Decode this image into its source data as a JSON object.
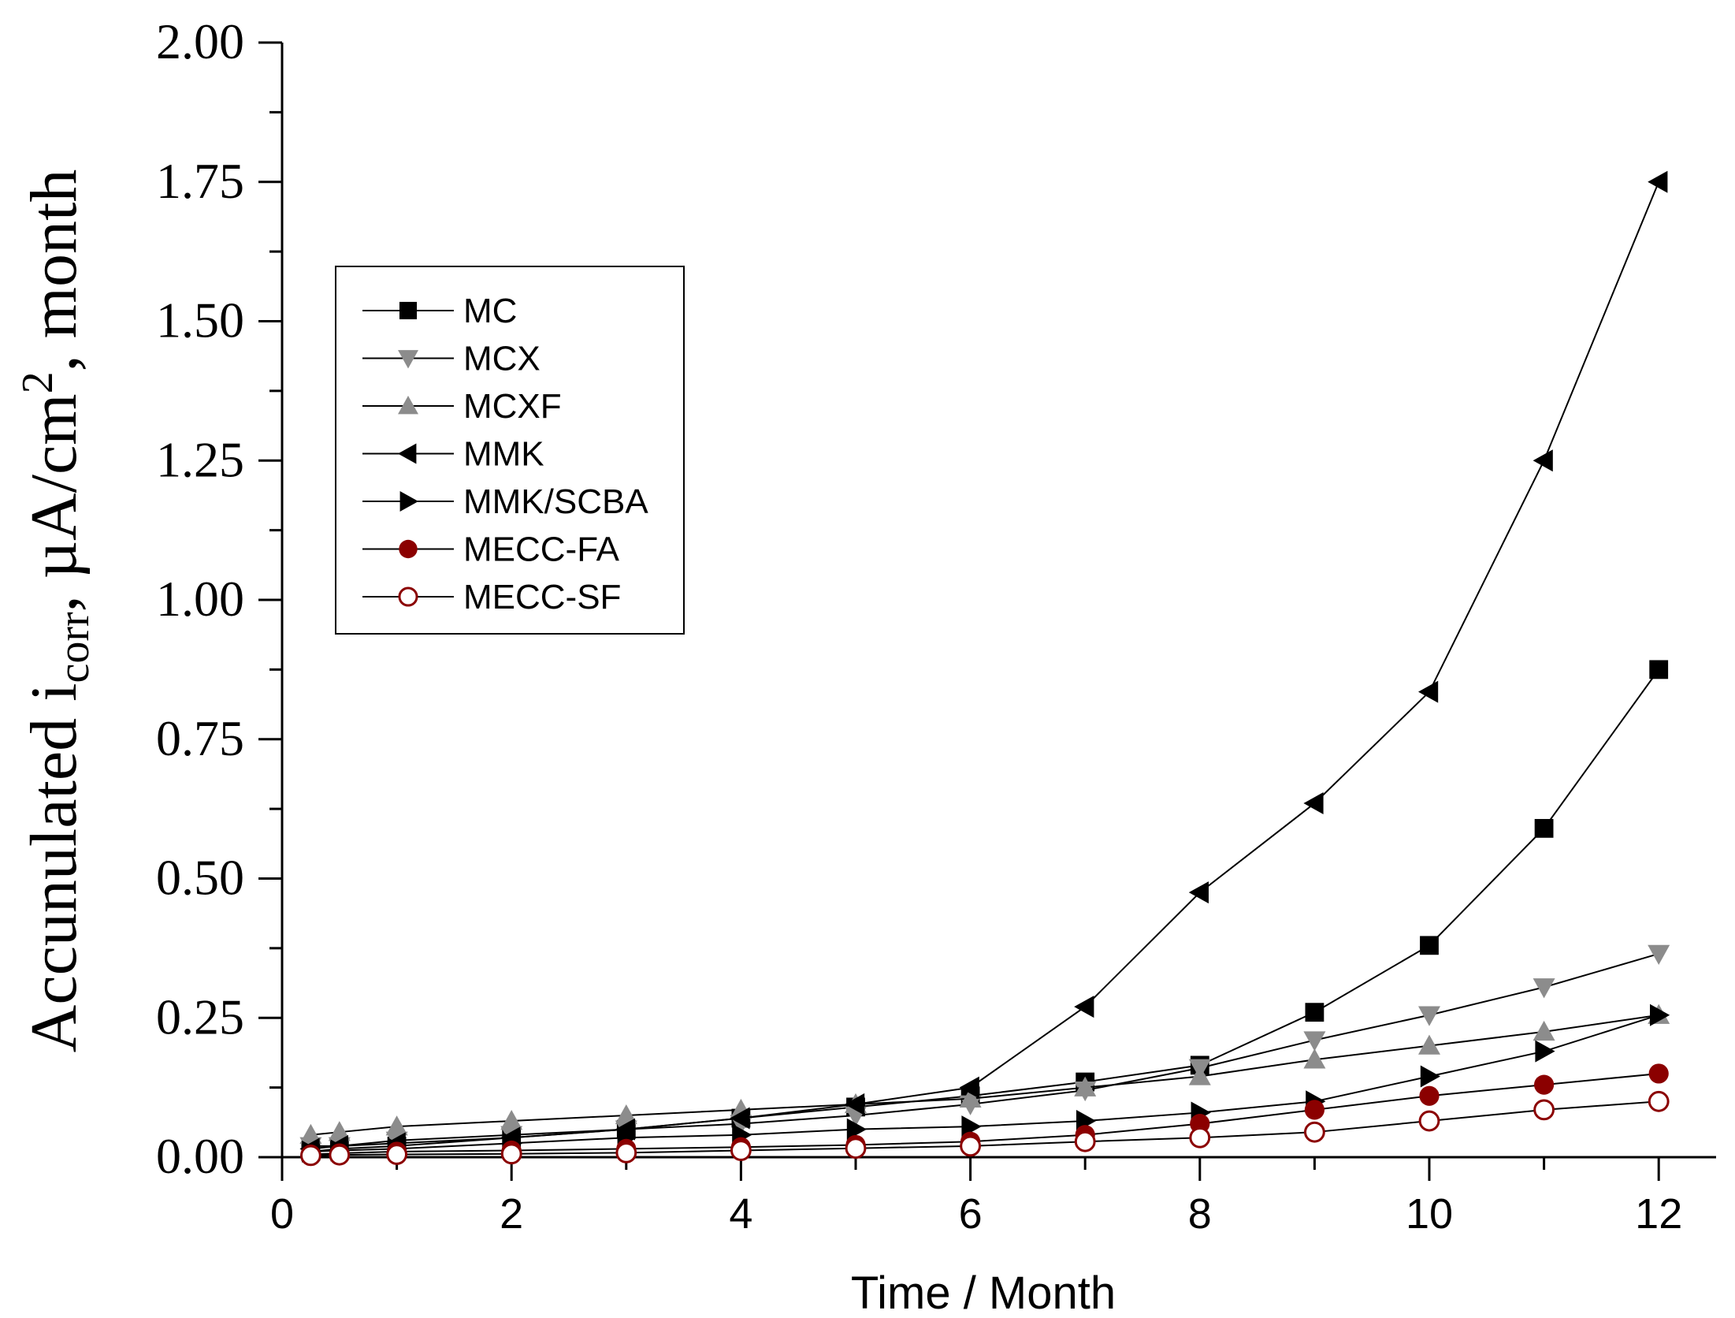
{
  "chart_data": {
    "type": "line",
    "xlabel": "Time / Month",
    "ylabel": {
      "prefix": "Accunulated i",
      "subscript": "corr",
      "middle": ", µA/cm",
      "superscript": "2",
      "suffix": ", month"
    },
    "xlim": [
      0,
      12.5
    ],
    "ylim": [
      0,
      2.0
    ],
    "x_ticks": [
      0,
      2,
      4,
      6,
      8,
      10,
      12
    ],
    "x_tick_labels": [
      "0",
      "2",
      "4",
      "6",
      "8",
      "10",
      "12"
    ],
    "y_ticks": [
      0,
      0.25,
      0.5,
      0.75,
      1.0,
      1.25,
      1.5,
      1.75,
      2.0
    ],
    "y_tick_labels": [
      "0.00",
      "0.25",
      "0.50",
      "0.75",
      "1.00",
      "1.25",
      "1.50",
      "1.75",
      "2.00"
    ],
    "grid": false,
    "legend_position": "upper-left",
    "x": [
      0.25,
      0.5,
      1,
      2,
      3,
      4,
      5,
      6,
      7,
      8,
      9,
      10,
      11,
      12
    ],
    "series": [
      {
        "name": "MC",
        "marker": "square",
        "color": "#000000",
        "values": [
          0.01,
          0.015,
          0.02,
          0.035,
          0.05,
          0.07,
          0.09,
          0.11,
          0.135,
          0.165,
          0.26,
          0.38,
          0.59,
          0.875
        ]
      },
      {
        "name": "MCX",
        "marker": "triangle-down",
        "color": "#8c8c8c",
        "values": [
          0.02,
          0.02,
          0.03,
          0.04,
          0.05,
          0.06,
          0.075,
          0.095,
          0.12,
          0.16,
          0.21,
          0.255,
          0.305,
          0.365
        ]
      },
      {
        "name": "MCXF",
        "marker": "triangle-up",
        "color": "#8c8c8c",
        "values": [
          0.04,
          0.045,
          0.055,
          0.065,
          0.075,
          0.085,
          0.095,
          0.105,
          0.125,
          0.145,
          0.175,
          0.2,
          0.225,
          0.255
        ]
      },
      {
        "name": "MMK",
        "marker": "triangle-left",
        "color": "#000000",
        "values": [
          0.015,
          0.02,
          0.025,
          0.035,
          0.05,
          0.07,
          0.095,
          0.125,
          0.27,
          0.475,
          0.635,
          0.835,
          1.25,
          1.75
        ]
      },
      {
        "name": "MMK/SCBA",
        "marker": "triangle-right",
        "color": "#000000",
        "values": [
          0.01,
          0.012,
          0.015,
          0.025,
          0.035,
          0.04,
          0.05,
          0.055,
          0.065,
          0.08,
          0.1,
          0.145,
          0.19,
          0.255
        ]
      },
      {
        "name": "MECC-FA",
        "marker": "circle",
        "color": "#8b0000",
        "values": [
          0.005,
          0.007,
          0.01,
          0.012,
          0.015,
          0.018,
          0.022,
          0.028,
          0.04,
          0.06,
          0.085,
          0.11,
          0.13,
          0.15
        ]
      },
      {
        "name": "MECC-SF",
        "marker": "circle-open",
        "color": "#8b0000",
        "values": [
          0.003,
          0.004,
          0.005,
          0.006,
          0.008,
          0.012,
          0.016,
          0.02,
          0.028,
          0.035,
          0.045,
          0.065,
          0.085,
          0.1
        ]
      }
    ]
  }
}
